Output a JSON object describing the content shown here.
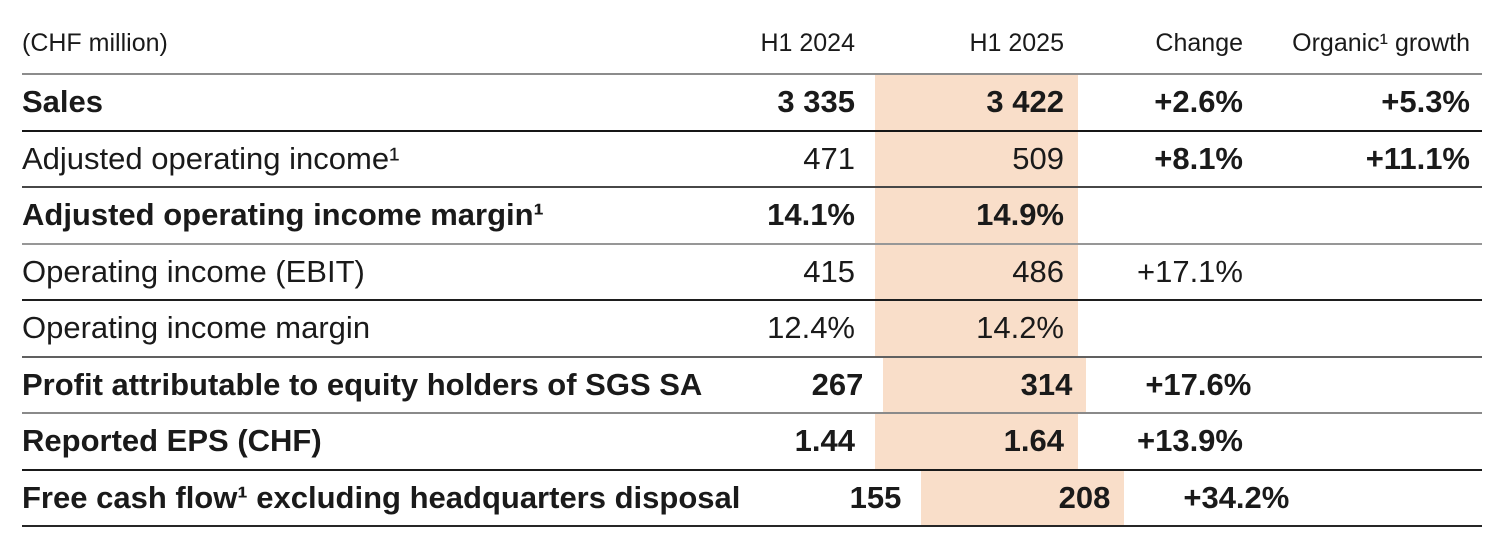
{
  "table": {
    "unit_label": "(CHF million)",
    "highlight_color": "#f9dec9",
    "columns": [
      "H1 2024",
      "H1 2025",
      "Change",
      "Organic¹ growth"
    ],
    "rows": [
      {
        "label": "Sales",
        "h1_2024": "3 335",
        "h1_2025": "3 422",
        "change": "+2.6%",
        "organic_growth": "+5.3%"
      },
      {
        "label": "Adjusted operating income¹",
        "h1_2024": "471",
        "h1_2025": "509",
        "change": "+8.1%",
        "organic_growth": "+11.1%"
      },
      {
        "label": "Adjusted operating income margin¹",
        "h1_2024": "14.1%",
        "h1_2025": "14.9%",
        "change": "",
        "organic_growth": ""
      },
      {
        "label": "Operating income (EBIT)",
        "h1_2024": "415",
        "h1_2025": "486",
        "change": "+17.1%",
        "organic_growth": ""
      },
      {
        "label": "Operating income margin",
        "h1_2024": "12.4%",
        "h1_2025": "14.2%",
        "change": "",
        "organic_growth": ""
      },
      {
        "label": "Profit attributable to equity holders of SGS SA",
        "h1_2024": "267",
        "h1_2025": "314",
        "change": "+17.6%",
        "organic_growth": ""
      },
      {
        "label": "Reported EPS (CHF)",
        "h1_2024": "1.44",
        "h1_2025": "1.64",
        "change": "+13.9%",
        "organic_growth": ""
      },
      {
        "label": "Free cash flow¹ excluding headquarters disposal",
        "h1_2024": "155",
        "h1_2025": "208",
        "change": "+34.2%",
        "organic_growth": ""
      }
    ]
  }
}
